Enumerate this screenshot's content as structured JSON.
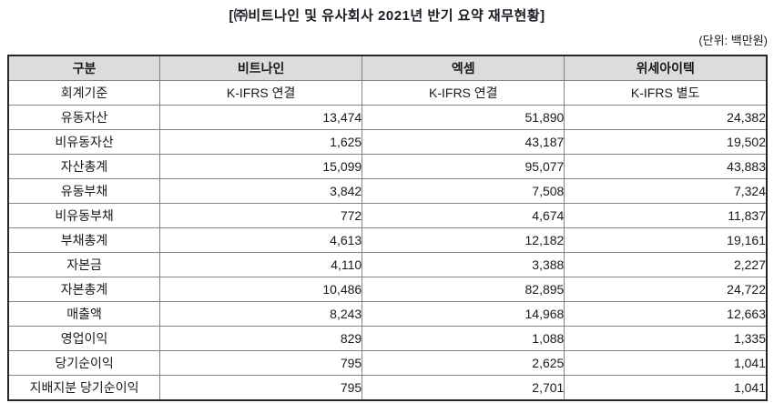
{
  "title": "[㈜비트나인 및 유사회사 2021년 반기 요약 재무현황]",
  "unit_label": "(단위: 백만원)",
  "colors": {
    "header_bg": "#dcdcdc",
    "outer_border": "#262626",
    "inner_border": "#858585",
    "text": "#1a1a1a"
  },
  "table": {
    "headers": [
      "구분",
      "비트나인",
      "엑셈",
      "위세아이텍"
    ],
    "rows": [
      {
        "label": "회계기준",
        "type": "text",
        "values": [
          "K-IFRS 연결",
          "K-IFRS 연결",
          "K-IFRS 별도"
        ]
      },
      {
        "label": "유동자산",
        "type": "number",
        "values": [
          "13,474",
          "51,890",
          "24,382"
        ]
      },
      {
        "label": "비유동자산",
        "type": "number",
        "values": [
          "1,625",
          "43,187",
          "19,502"
        ]
      },
      {
        "label": "자산총계",
        "type": "number",
        "values": [
          "15,099",
          "95,077",
          "43,883"
        ]
      },
      {
        "label": "유동부채",
        "type": "number",
        "values": [
          "3,842",
          "7,508",
          "7,324"
        ]
      },
      {
        "label": "비유동부채",
        "type": "number",
        "values": [
          "772",
          "4,674",
          "11,837"
        ]
      },
      {
        "label": "부채총계",
        "type": "number",
        "values": [
          "4,613",
          "12,182",
          "19,161"
        ]
      },
      {
        "label": "자본금",
        "type": "number",
        "values": [
          "4,110",
          "3,388",
          "2,227"
        ]
      },
      {
        "label": "자본총계",
        "type": "number",
        "values": [
          "10,486",
          "82,895",
          "24,722"
        ]
      },
      {
        "label": "매출액",
        "type": "number",
        "values": [
          "8,243",
          "14,968",
          "12,663"
        ]
      },
      {
        "label": "영업이익",
        "type": "number",
        "values": [
          "829",
          "1,088",
          "1,335"
        ]
      },
      {
        "label": "당기순이익",
        "type": "number",
        "values": [
          "795",
          "2,625",
          "1,041"
        ]
      },
      {
        "label": "지배지분 당기순이익",
        "type": "number",
        "values": [
          "795",
          "2,701",
          "1,041"
        ]
      }
    ]
  }
}
